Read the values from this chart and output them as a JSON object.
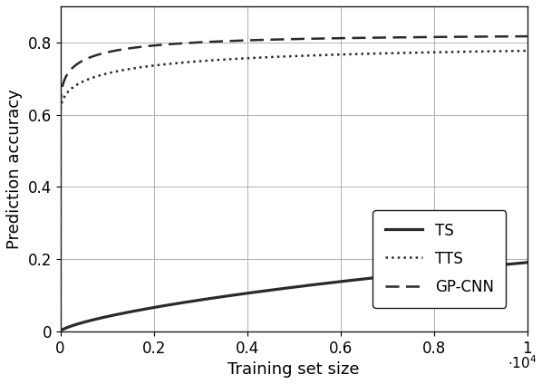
{
  "title": "",
  "xlabel": "Training set size",
  "ylabel": "Prediction accuracy",
  "xlim": [
    0,
    10000
  ],
  "ylim": [
    0,
    0.9
  ],
  "yticks": [
    0,
    0.2,
    0.4,
    0.6,
    0.8
  ],
  "xticks": [
    0,
    2000,
    4000,
    6000,
    8000,
    10000
  ],
  "xtick_labels": [
    "0",
    "0.2",
    "0.4",
    "0.6",
    "0.8",
    "1"
  ],
  "background_color": "#ffffff",
  "grid_color": "#b0b0b0",
  "line_color": "#2a2a2a",
  "legend_entries": [
    "TS",
    "TTS",
    "GP-CNN"
  ],
  "linewidth": 1.8
}
